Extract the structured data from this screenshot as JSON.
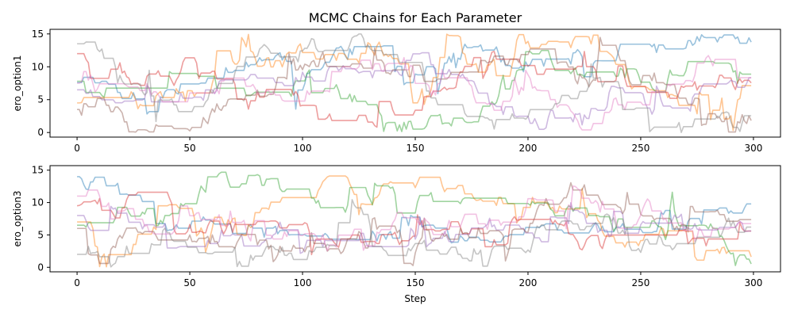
{
  "chart_data": [
    {
      "type": "line",
      "title": "MCMC Chains for Each Parameter",
      "ylabel": "ero_option1",
      "xlabel": "",
      "xlim": [
        -12,
        312
      ],
      "ylim": [
        -0.7,
        15.7
      ],
      "xticks": [
        0,
        50,
        100,
        150,
        200,
        250,
        300
      ],
      "yticks": [
        0,
        5,
        10,
        15
      ],
      "grid": false,
      "alpha": 0.45,
      "steps": 300,
      "series": [
        {
          "color": "#1f77b4",
          "seed": 11,
          "start": 7.6,
          "lo": 0,
          "hi": 15,
          "anchors": [
            7.6,
            6.5,
            9.5,
            12.5,
            11.0,
            13.5,
            11.5,
            12.0,
            10.5,
            13.0,
            12.5,
            14.0,
            13.0
          ]
        },
        {
          "color": "#ff7f0e",
          "seed": 23,
          "start": 4.5,
          "lo": 0,
          "hi": 15,
          "anchors": [
            4.5,
            5.0,
            7.0,
            9.0,
            12.5,
            13.0,
            12.0,
            9.0,
            14.0,
            13.5,
            6.0,
            3.0,
            12.0
          ]
        },
        {
          "color": "#2ca02c",
          "seed": 37,
          "start": 7.8,
          "lo": 0,
          "hi": 15,
          "anchors": [
            7.8,
            9.0,
            4.0,
            1.0,
            12.0,
            3.0,
            1.5,
            4.0,
            12.0,
            10.0,
            8.0,
            11.0,
            4.0
          ]
        },
        {
          "color": "#d62728",
          "seed": 41,
          "start": 12.0,
          "lo": 0,
          "hi": 15,
          "anchors": [
            12.0,
            8.5,
            11.0,
            7.0,
            3.0,
            1.5,
            5.0,
            12.5,
            9.0,
            6.5,
            5.0,
            7.0,
            9.5
          ]
        },
        {
          "color": "#9467bd",
          "seed": 53,
          "start": 6.5,
          "lo": 0,
          "hi": 15,
          "anchors": [
            6.5,
            8.0,
            6.0,
            9.0,
            10.0,
            9.0,
            11.0,
            5.0,
            2.0,
            4.5,
            4.0,
            6.0,
            6.0
          ]
        },
        {
          "color": "#8c564b",
          "seed": 67,
          "start": 3.5,
          "lo": 0,
          "hi": 15,
          "anchors": [
            3.5,
            2.0,
            3.0,
            5.0,
            12.0,
            10.0,
            5.0,
            12.0,
            11.0,
            5.0,
            9.0,
            4.0,
            3.0
          ]
        },
        {
          "color": "#e377c2",
          "seed": 79,
          "start": 7.5,
          "lo": 0,
          "hi": 15,
          "anchors": [
            7.5,
            8.5,
            6.0,
            4.5,
            7.0,
            10.5,
            8.0,
            4.0,
            6.0,
            3.5,
            7.0,
            12.0,
            9.5
          ]
        },
        {
          "color": "#7f7f7f",
          "seed": 83,
          "start": 13.5,
          "lo": 0,
          "hi": 15,
          "anchors": [
            13.5,
            6.0,
            2.0,
            14.5,
            13.0,
            14.0,
            1.0,
            3.0,
            5.5,
            7.0,
            3.0,
            1.5,
            1.0
          ]
        }
      ]
    },
    {
      "type": "line",
      "title": "",
      "ylabel": "ero_option3",
      "xlabel": "Step",
      "xlim": [
        -12,
        312
      ],
      "ylim": [
        -0.7,
        15.7
      ],
      "xticks": [
        0,
        50,
        100,
        150,
        200,
        250,
        300
      ],
      "yticks": [
        0,
        5,
        10,
        15
      ],
      "grid": false,
      "alpha": 0.45,
      "steps": 300,
      "series": [
        {
          "color": "#1f77b4",
          "seed": 101,
          "start": 14.0,
          "lo": 0,
          "hi": 15,
          "anchors": [
            14.0,
            9.0,
            6.0,
            5.5,
            4.5,
            6.0,
            3.0,
            6.0,
            5.5,
            6.0,
            7.5,
            6.0,
            10.5
          ]
        },
        {
          "color": "#ff7f0e",
          "seed": 113,
          "start": 7.0,
          "lo": 0,
          "hi": 15,
          "anchors": [
            7.0,
            6.0,
            7.0,
            9.0,
            13.5,
            13.5,
            12.5,
            10.5,
            12.0,
            5.5,
            4.0,
            3.5,
            0.4
          ]
        },
        {
          "color": "#2ca02c",
          "seed": 127,
          "start": 6.5,
          "lo": 0,
          "hi": 15,
          "anchors": [
            6.5,
            7.5,
            12.0,
            13.0,
            10.0,
            7.5,
            11.0,
            10.5,
            10.0,
            7.5,
            6.5,
            5.0,
            2.0
          ]
        },
        {
          "color": "#d62728",
          "seed": 131,
          "start": 9.5,
          "lo": 0,
          "hi": 15,
          "anchors": [
            9.5,
            11.0,
            6.5,
            6.0,
            5.0,
            4.5,
            5.5,
            6.0,
            5.5,
            4.0,
            2.5,
            3.5,
            5.5
          ]
        },
        {
          "color": "#9467bd",
          "seed": 149,
          "start": 8.0,
          "lo": 0,
          "hi": 15,
          "anchors": [
            8.0,
            6.5,
            5.5,
            7.0,
            5.0,
            4.0,
            5.0,
            5.5,
            6.0,
            5.0,
            6.0,
            5.5,
            5.0
          ]
        },
        {
          "color": "#8c564b",
          "seed": 157,
          "start": 6.0,
          "lo": 0,
          "hi": 15,
          "anchors": [
            6.0,
            7.5,
            5.0,
            3.0,
            2.0,
            4.5,
            4.0,
            6.0,
            9.0,
            12.0,
            8.0,
            6.0,
            7.5
          ]
        },
        {
          "color": "#e377c2",
          "seed": 163,
          "start": 11.0,
          "lo": 0,
          "hi": 15,
          "anchors": [
            11.0,
            7.0,
            6.5,
            5.5,
            6.0,
            7.5,
            7.0,
            6.5,
            8.0,
            7.0,
            8.0,
            7.0,
            4.5
          ]
        },
        {
          "color": "#7f7f7f",
          "seed": 173,
          "start": 2.0,
          "lo": 0,
          "hi": 15,
          "anchors": [
            2.0,
            3.5,
            4.5,
            2.5,
            2.0,
            4.0,
            1.0,
            4.0,
            5.0,
            6.0,
            4.5,
            5.5,
            6.5
          ]
        }
      ]
    }
  ]
}
